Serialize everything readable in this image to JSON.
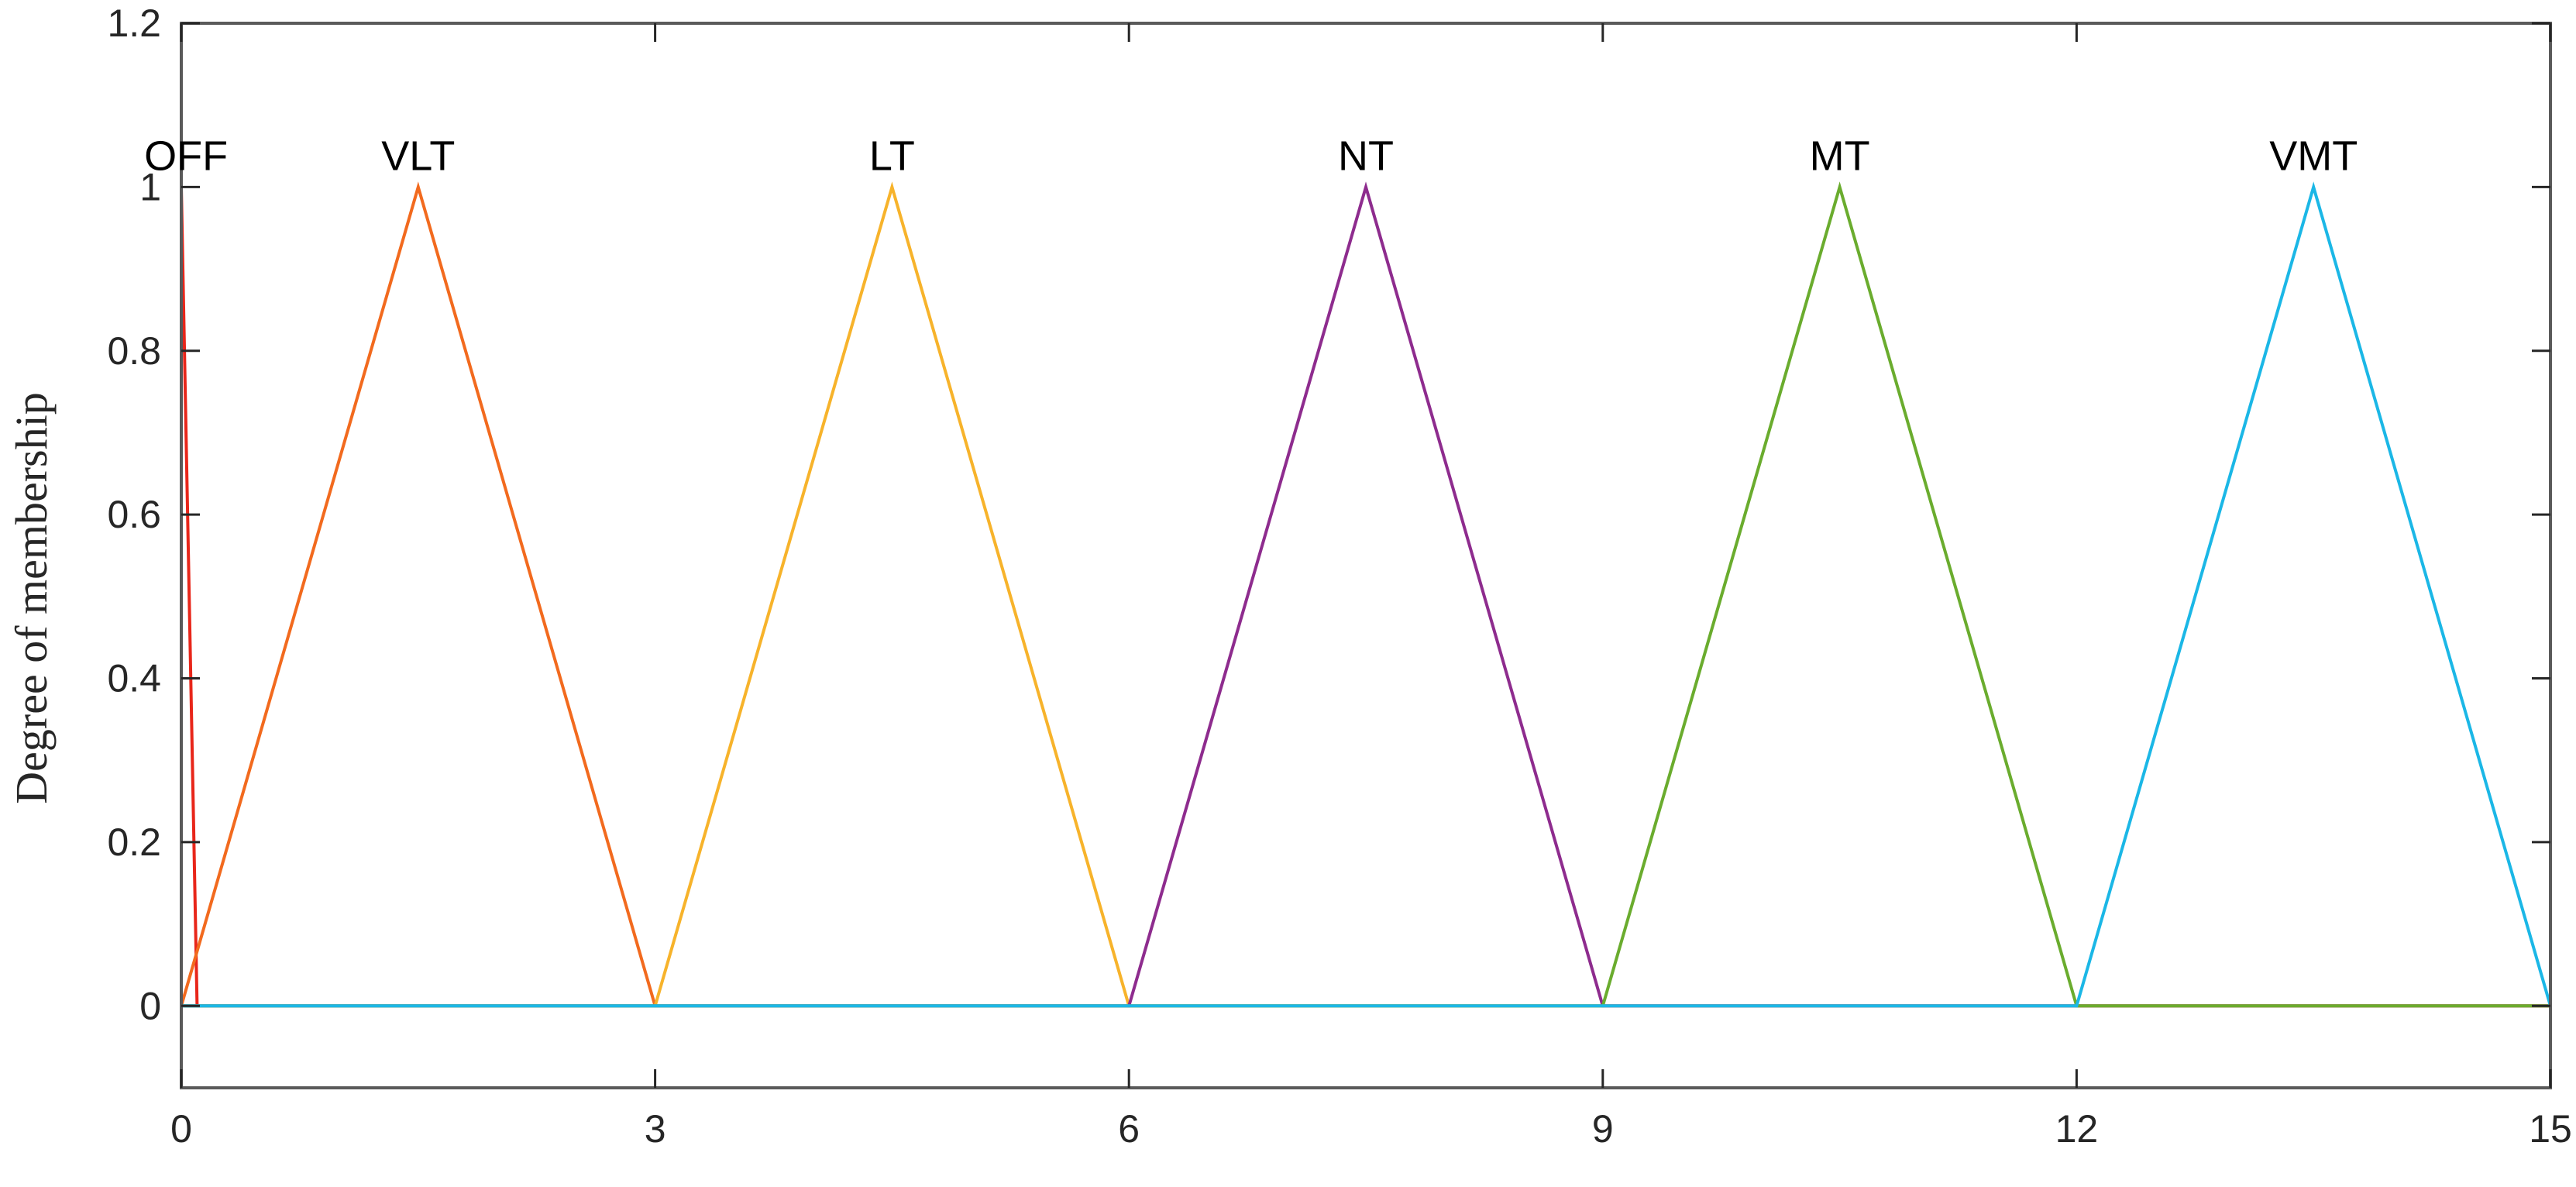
{
  "chart_data": {
    "type": "line",
    "title": "",
    "xlabel": "",
    "ylabel": "Degree of membership",
    "xlim": [
      0,
      15
    ],
    "ylim": [
      -0.1,
      1.2
    ],
    "xticks": [
      0,
      3,
      6,
      9,
      12,
      15
    ],
    "yticks": [
      0,
      0.2,
      0.4,
      0.6,
      0.8,
      1,
      1.2
    ],
    "ytick_labels": [
      "0",
      "0.2",
      "0.4",
      "0.6",
      "0.8",
      "1",
      "1.2"
    ],
    "grid": false,
    "series": [
      {
        "name": "OFF",
        "color": "#e8261a",
        "x": [
          0,
          0,
          0.1
        ],
        "y": [
          0,
          1,
          0
        ],
        "label_at": [
          0.03,
          1
        ]
      },
      {
        "name": "VLT",
        "color": "#f26a1e",
        "x": [
          0,
          1.5,
          3,
          15
        ],
        "y": [
          0,
          1,
          0,
          0
        ],
        "label_at": [
          1.5,
          1
        ]
      },
      {
        "name": "LT",
        "color": "#f7b32b",
        "x": [
          0,
          3,
          4.5,
          6,
          15
        ],
        "y": [
          0,
          0,
          1,
          0,
          0
        ],
        "label_at": [
          4.5,
          1
        ]
      },
      {
        "name": "NT",
        "color": "#8e2c8e",
        "x": [
          0,
          6,
          7.5,
          9,
          15
        ],
        "y": [
          0,
          0,
          1,
          0,
          0
        ],
        "label_at": [
          7.5,
          1
        ]
      },
      {
        "name": "MT",
        "color": "#6aac2e",
        "x": [
          0,
          9,
          10.5,
          12,
          15
        ],
        "y": [
          0,
          0,
          1,
          0,
          0
        ],
        "label_at": [
          10.5,
          1
        ]
      },
      {
        "name": "VMT",
        "color": "#1bb7e6",
        "x": [
          0,
          12,
          13.5,
          15
        ],
        "y": [
          0,
          0,
          1,
          0
        ],
        "label_at": [
          13.5,
          1
        ]
      }
    ]
  }
}
